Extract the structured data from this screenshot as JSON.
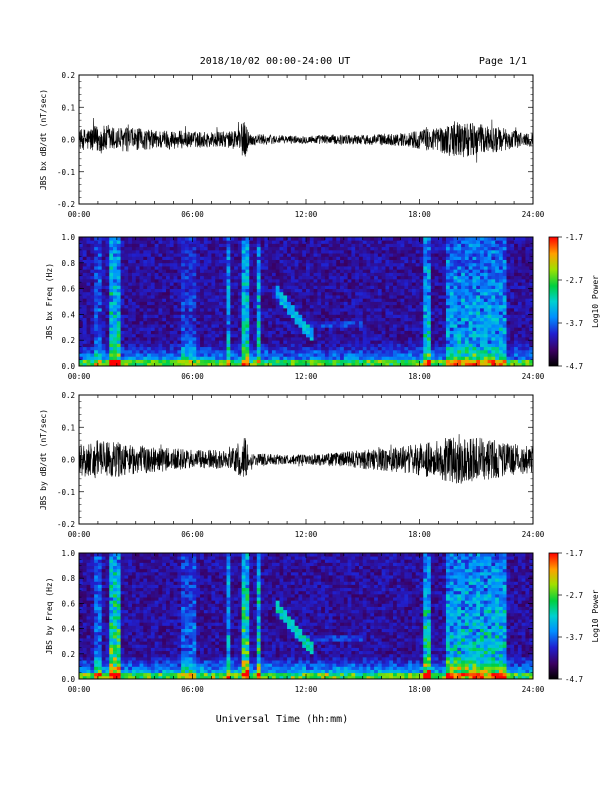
{
  "header": {
    "title": "2018/10/02  00:00-24:00 UT",
    "page": "Page 1/1"
  },
  "xaxis": {
    "label": "Universal Time (hh:mm)",
    "ticks": [
      "00:00",
      "06:00",
      "12:00",
      "18:00",
      "24:00"
    ],
    "range_hours": [
      0,
      24
    ]
  },
  "chart_data": [
    {
      "type": "line",
      "ylabel": "JBS bx dB/dt (nT/sec)",
      "ylim": [
        -0.2,
        0.2
      ],
      "yticks": [
        "0.2",
        "0.1",
        "0.0",
        "-0.1",
        "-0.2"
      ],
      "ytick_values": [
        0.2,
        0.1,
        0.0,
        -0.1,
        -0.2
      ],
      "series": [
        {
          "x_hours": [
            0,
            1,
            2,
            3,
            4,
            5,
            6,
            7,
            8,
            8.8,
            9,
            10,
            11,
            12,
            13,
            14,
            15,
            16,
            17,
            18,
            19,
            20,
            21,
            22,
            23,
            24
          ],
          "amplitude": [
            0.03,
            0.045,
            0.04,
            0.035,
            0.03,
            0.03,
            0.025,
            0.025,
            0.025,
            0.06,
            0.02,
            0.015,
            0.012,
            0.012,
            0.015,
            0.015,
            0.015,
            0.018,
            0.02,
            0.03,
            0.04,
            0.06,
            0.05,
            0.04,
            0.03,
            0.02
          ]
        }
      ]
    },
    {
      "type": "heatmap",
      "ylabel": "JBS bx Freq (Hz)",
      "ylim": [
        0.0,
        1.0
      ],
      "yticks": [
        "1.0",
        "0.8",
        "0.6",
        "0.4",
        "0.2",
        "0.0"
      ],
      "ytick_values": [
        1.0,
        0.8,
        0.6,
        0.4,
        0.2,
        0.0
      ],
      "colorbar": {
        "label": "Log10 Power",
        "ticks": [
          "-1.7",
          "-2.7",
          "-3.7",
          "-4.7"
        ],
        "range": [
          -4.7,
          -1.7
        ]
      }
    },
    {
      "type": "line",
      "ylabel": "JBS by dB/dt (nT/sec)",
      "ylim": [
        -0.2,
        0.2
      ],
      "yticks": [
        "0.2",
        "0.1",
        "0.0",
        "-0.1",
        "-0.2"
      ],
      "ytick_values": [
        0.2,
        0.1,
        0.0,
        -0.1,
        -0.2
      ],
      "series": [
        {
          "x_hours": [
            0,
            1,
            2,
            3,
            4,
            5,
            6,
            7,
            8,
            8.8,
            9,
            10,
            11,
            12,
            13,
            14,
            15,
            16,
            17,
            18,
            19,
            20,
            21,
            22,
            23,
            24
          ],
          "amplitude": [
            0.05,
            0.06,
            0.055,
            0.045,
            0.04,
            0.035,
            0.03,
            0.03,
            0.03,
            0.07,
            0.02,
            0.018,
            0.015,
            0.015,
            0.02,
            0.025,
            0.03,
            0.035,
            0.04,
            0.05,
            0.06,
            0.08,
            0.07,
            0.06,
            0.05,
            0.04
          ]
        }
      ]
    },
    {
      "type": "heatmap",
      "ylabel": "JBS by Freq (Hz)",
      "ylim": [
        0.0,
        1.0
      ],
      "yticks": [
        "1.0",
        "0.8",
        "0.6",
        "0.4",
        "0.2",
        "0.0"
      ],
      "ytick_values": [
        1.0,
        0.8,
        0.6,
        0.4,
        0.2,
        0.0
      ],
      "colorbar": {
        "label": "Log10 Power",
        "ticks": [
          "-1.7",
          "-2.7",
          "-3.7",
          "-4.7"
        ],
        "range": [
          -4.7,
          -1.7
        ]
      }
    }
  ]
}
